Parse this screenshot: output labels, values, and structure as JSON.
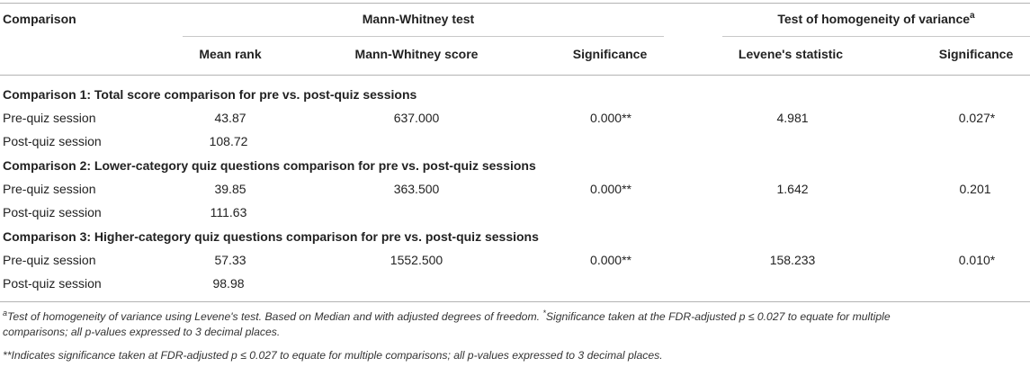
{
  "header": {
    "comparison": "Comparison",
    "mann_whitney_group": "Mann-Whitney test",
    "homogeneity_group": "Test of homogeneity of variance",
    "homogeneity_sup": "a",
    "columns": [
      "Mean rank",
      "Mann-Whitney score",
      "Significance",
      "Levene's statistic",
      "Significance"
    ]
  },
  "sections": [
    {
      "title": "Comparison 1: Total score comparison for pre vs. post-quiz sessions",
      "rows": [
        {
          "label": "Pre-quiz session",
          "mean_rank": "43.87",
          "mw_score": "637.000",
          "mw_sig": "0.000**",
          "levene": "4.981",
          "levene_sig": "0.027*"
        },
        {
          "label": "Post-quiz session",
          "mean_rank": "108.72",
          "mw_score": "",
          "mw_sig": "",
          "levene": "",
          "levene_sig": ""
        }
      ]
    },
    {
      "title": "Comparison 2: Lower-category quiz questions comparison for pre vs. post-quiz sessions",
      "rows": [
        {
          "label": "Pre-quiz session",
          "mean_rank": "39.85",
          "mw_score": "363.500",
          "mw_sig": "0.000**",
          "levene": "1.642",
          "levene_sig": "0.201"
        },
        {
          "label": "Post-quiz session",
          "mean_rank": "111.63",
          "mw_score": "",
          "mw_sig": "",
          "levene": "",
          "levene_sig": ""
        }
      ]
    },
    {
      "title": "Comparison 3: Higher-category quiz questions comparison for pre vs. post-quiz sessions",
      "rows": [
        {
          "label": "Pre-quiz session",
          "mean_rank": "57.33",
          "mw_score": "1552.500",
          "mw_sig": "0.000**",
          "levene": "158.233",
          "levene_sig": "0.010*"
        },
        {
          "label": "Post-quiz session",
          "mean_rank": "98.98",
          "mw_score": "",
          "mw_sig": "",
          "levene": "",
          "levene_sig": ""
        }
      ]
    }
  ],
  "footnotes": {
    "a_marker": "a",
    "a_text_1": "Test of homogeneity of variance using Levene's test. Based on Median and with adjusted degrees of freedom. ",
    "star_marker": "*",
    "a_text_2": "Significance taken at the FDR-adjusted p ≤ 0.027 to equate for multiple",
    "a_text_3": "comparisons; all p-values expressed to 3 decimal places.",
    "double_star": "**Indicates significance taken at FDR-adjusted p ≤ 0.027 to equate for multiple comparisons; all p-values expressed to 3 decimal places."
  }
}
